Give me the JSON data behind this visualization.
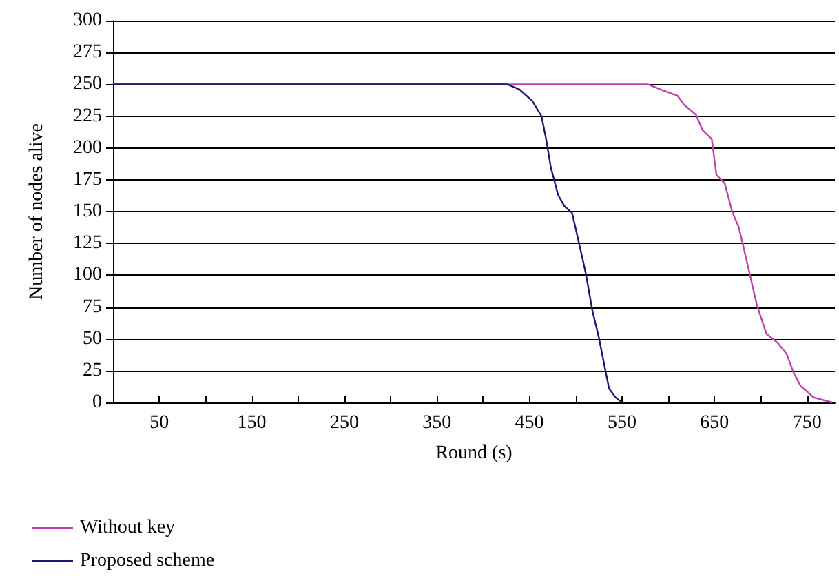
{
  "chart_data": {
    "type": "line",
    "xlabel": "Round (s)",
    "ylabel": "Number of nodes alive",
    "xlim": [
      0,
      780
    ],
    "ylim": [
      0,
      300
    ],
    "xticks": [
      50,
      {
        "value": 100,
        "label": null
      },
      150,
      {
        "value": 200,
        "label": null
      },
      250,
      {
        "value": 300,
        "label": null
      },
      350,
      {
        "value": 400,
        "label": null
      },
      450,
      {
        "value": 500,
        "label": null
      },
      550,
      {
        "value": 600,
        "label": null
      },
      650,
      {
        "value": 700,
        "label": null
      },
      750
    ],
    "yticks": [
      0,
      25,
      50,
      75,
      100,
      125,
      150,
      175,
      200,
      225,
      250,
      275,
      300
    ],
    "grid": "y",
    "legend": "bottom left",
    "marker": "none",
    "line_style": "solid",
    "series": [
      {
        "name": "Without key",
        "color": "#c040b0",
        "x": [
          0,
          578,
          595,
          610,
          617,
          630,
          637,
          647,
          652,
          661,
          669,
          676,
          681,
          688,
          696,
          706,
          718,
          728,
          735,
          743,
          757,
          777
        ],
        "values": [
          250,
          250,
          245,
          241,
          234,
          226,
          214,
          207,
          179,
          172,
          150,
          138,
          123,
          101,
          76,
          54,
          47,
          38,
          24,
          13,
          4,
          0
        ]
      },
      {
        "name": "Proposed scheme",
        "color": "#1a1a6e",
        "x": [
          0,
          426,
          439,
          453,
          463,
          468,
          473,
          481,
          488,
          496,
          503,
          511,
          518,
          525,
          531,
          536,
          543,
          550
        ],
        "values": [
          250,
          250,
          246,
          237,
          225,
          207,
          185,
          163,
          154,
          149,
          127,
          101,
          72,
          51,
          29,
          11,
          4,
          0
        ]
      }
    ]
  }
}
